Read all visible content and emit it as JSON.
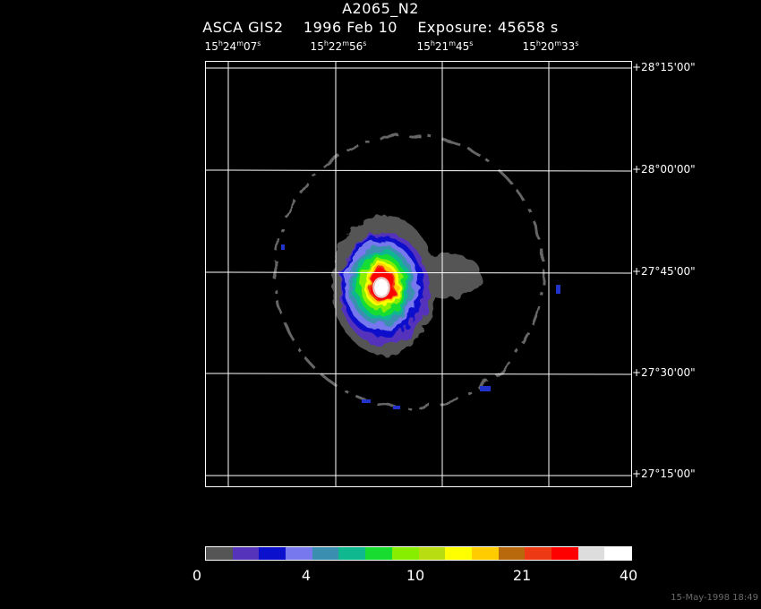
{
  "header": {
    "object_name": "A2065_N2",
    "info_line": "ASCA GIS2    1996 Feb 10    Exposure: 45658 s"
  },
  "ra_axis": {
    "labels": [
      {
        "h": "15",
        "m": "24",
        "s": "07"
      },
      {
        "h": "15",
        "m": "22",
        "s": "56"
      },
      {
        "h": "15",
        "m": "21",
        "s": "45"
      },
      {
        "h": "15",
        "m": "20",
        "s": "33"
      }
    ]
  },
  "dec_axis": {
    "labels": [
      "+28°15'00\"",
      "+28°00'00\"",
      "+27°45'00\"",
      "+27°30'00\"",
      "+27°15'00\""
    ]
  },
  "colorbar": {
    "colors": [
      "#555555",
      "#5533bb",
      "#0a10cc",
      "#7777ee",
      "#3a8fb0",
      "#10b890",
      "#18dd30",
      "#88ee00",
      "#b8dd10",
      "#ffff00",
      "#ffcc00",
      "#b8690b",
      "#ee3a14",
      "#ff0000",
      "#dddddd",
      "#ffffff"
    ],
    "tick_labels": [
      "0",
      "4",
      "10",
      "21",
      "40"
    ]
  },
  "footer": {
    "timestamp": "15-May-1998 18:49"
  }
}
